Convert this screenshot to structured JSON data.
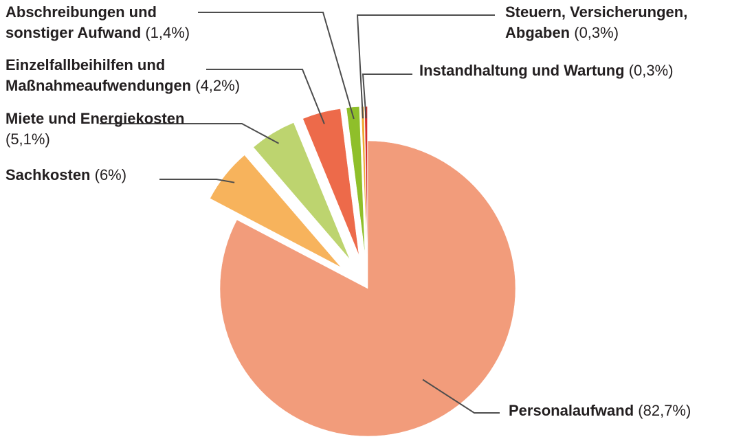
{
  "chart_data": {
    "type": "pie",
    "categories": [
      "Personalaufwand",
      "Sachkosten",
      "Miete und Energiekosten",
      "Einzelfallbeihilfen und Maßnahmeaufwendungen",
      "Abschreibungen und sonstiger Aufwand",
      "Steuern, Versicherungen, Abgaben",
      "Instandhaltung und Wartung"
    ],
    "values": [
      82.7,
      6,
      5.1,
      4.2,
      1.4,
      0.3,
      0.3
    ],
    "value_labels": [
      "(82,7%)",
      "(6%)",
      "(5,1%)",
      "(4,2%)",
      "(1,4%)",
      "(0,3%)",
      "(0,3%)"
    ],
    "colors": [
      "#f29c7b",
      "#f7b35c",
      "#bdd46f",
      "#ed6a4a",
      "#8fbf2a",
      "#f0a830",
      "#d32f2f"
    ]
  }
}
